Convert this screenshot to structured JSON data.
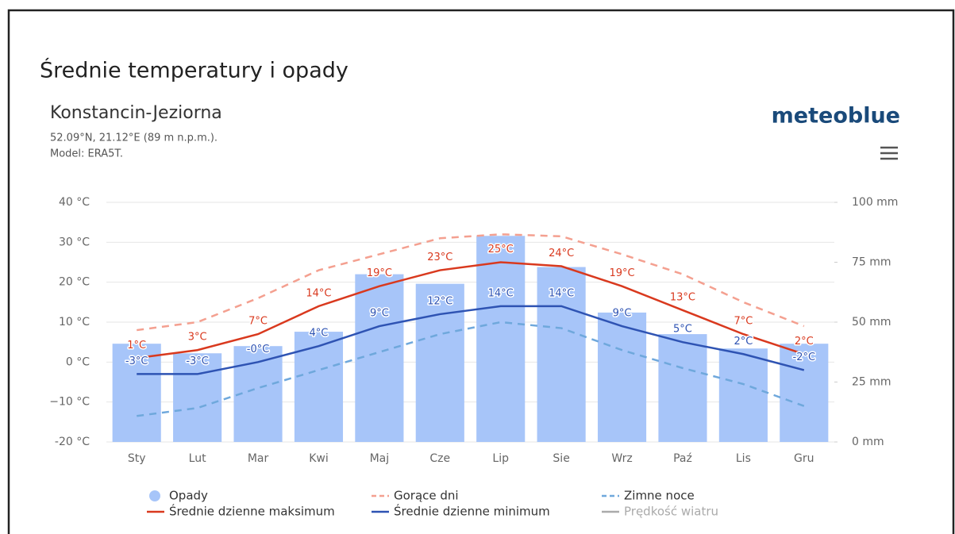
{
  "header": {
    "title": "Średnie temperatury i opady",
    "location": "Konstancin-Jeziorna",
    "coordinates": "52.09°N, 21.12°E (89 m n.p.m.).",
    "model": "Model: ERA5T.",
    "brand": "meteoblue"
  },
  "chart_data": {
    "type": "combo",
    "categories": [
      "Sty",
      "Lut",
      "Mar",
      "Kwi",
      "Maj",
      "Cze",
      "Lip",
      "Sie",
      "Wrz",
      "Paź",
      "Lis",
      "Gru"
    ],
    "ylim": [
      -20,
      40
    ],
    "yticks": [
      {
        "value": -20,
        "label": "-20 °C"
      },
      {
        "value": -10,
        "label": "−10 °C"
      },
      {
        "value": 0,
        "label": "0 °C"
      },
      {
        "value": 10,
        "label": "10 °C"
      },
      {
        "value": 20,
        "label": "20 °C"
      },
      {
        "value": 30,
        "label": "30 °C"
      },
      {
        "value": 40,
        "label": "40 °C"
      }
    ],
    "y2lim": [
      0,
      100
    ],
    "y2ticks": [
      {
        "value": 0,
        "label": "0 mm"
      },
      {
        "value": 25,
        "label": "25 mm"
      },
      {
        "value": 50,
        "label": "50 mm"
      },
      {
        "value": 75,
        "label": "75 mm"
      },
      {
        "value": 100,
        "label": "100 mm"
      }
    ],
    "grid": true,
    "series": [
      {
        "name": "Opady",
        "type": "bar",
        "axis": "y2",
        "color": "#a7c5f9",
        "values": [
          41,
          37,
          40,
          46,
          70,
          66,
          86,
          73,
          54,
          45,
          39,
          41
        ]
      },
      {
        "name": "Gorące dni",
        "type": "line",
        "dash": true,
        "color": "#f4a090",
        "values": [
          8,
          10,
          16,
          23,
          27,
          31,
          32,
          31.5,
          27,
          22,
          15,
          9
        ]
      },
      {
        "name": "Zimne noce",
        "type": "line",
        "dash": true,
        "color": "#6fa8dc",
        "values": [
          -13.5,
          -11.5,
          -6.5,
          -2,
          2.5,
          7,
          10,
          8.5,
          3,
          -1.5,
          -5.5,
          -11
        ]
      },
      {
        "name": "Średnie dzienne maksimum",
        "type": "line",
        "color": "#d9391e",
        "values": [
          1,
          3,
          7,
          14,
          19,
          23,
          25,
          24,
          19,
          13,
          7,
          2
        ],
        "value_labels": [
          "1°C",
          "3°C",
          "7°C",
          "14°C",
          "19°C",
          "23°C",
          "25°C",
          "24°C",
          "19°C",
          "13°C",
          "7°C",
          "2°C"
        ]
      },
      {
        "name": "Średnie dzienne minimum",
        "type": "line",
        "color": "#2e53b3",
        "values": [
          -3,
          -3,
          0,
          4,
          9,
          12,
          14,
          14,
          9,
          5,
          2,
          -2
        ],
        "value_labels": [
          "-3°C",
          "-3°C",
          "-0°C",
          "4°C",
          "9°C",
          "12°C",
          "14°C",
          "14°C",
          "9°C",
          "5°C",
          "2°C",
          "-2°C"
        ]
      }
    ],
    "extra_legend": [
      {
        "name": "Prędkość wiatru",
        "color": "#aaaaaa"
      }
    ]
  }
}
